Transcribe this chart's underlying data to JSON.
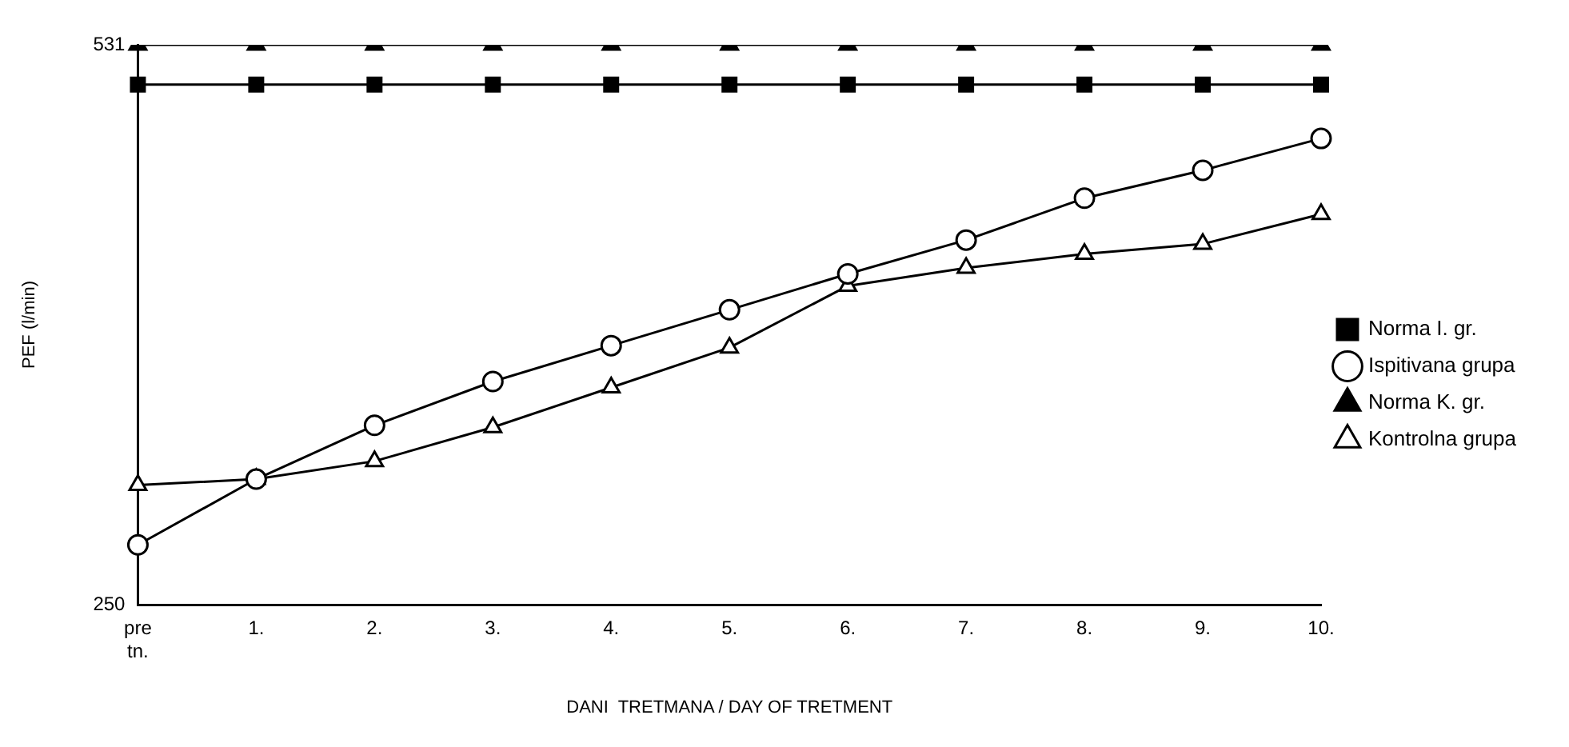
{
  "chart_data": {
    "type": "line",
    "xlabel": "DANI  TRETMANA / DAY OF TRETMENT",
    "ylabel": "PEF (l/min)",
    "categories": [
      "pre tn.",
      "1.",
      "2.",
      "3.",
      "4.",
      "5.",
      "6.",
      "7.",
      "8.",
      "9.",
      "10."
    ],
    "ylim": [
      250,
      531
    ],
    "yticks": [
      250,
      531
    ],
    "grid": false,
    "legend": "right",
    "line_style": "solid",
    "series": [
      {
        "name": "Norma I. gr.",
        "color": "#000000",
        "marker": "square",
        "values": [
          511,
          511,
          511,
          511,
          511,
          511,
          511,
          511,
          511,
          511,
          511
        ]
      },
      {
        "name": "Ispitivana grupa",
        "color": "#000000",
        "marker": "circle",
        "values": [
          280,
          313,
          340,
          362,
          380,
          398,
          416,
          433,
          454,
          468,
          484
        ]
      },
      {
        "name": "Norma K. gr.",
        "color": "#000000",
        "marker": "triangle",
        "values": [
          531,
          531,
          531,
          531,
          531,
          531,
          531,
          531,
          531,
          531,
          531
        ]
      },
      {
        "name": "Kontrolna grupa",
        "color": "#000000",
        "marker": "triangle",
        "values": [
          310,
          313,
          322,
          339,
          359,
          379,
          410,
          419,
          426,
          431,
          446
        ]
      }
    ]
  }
}
